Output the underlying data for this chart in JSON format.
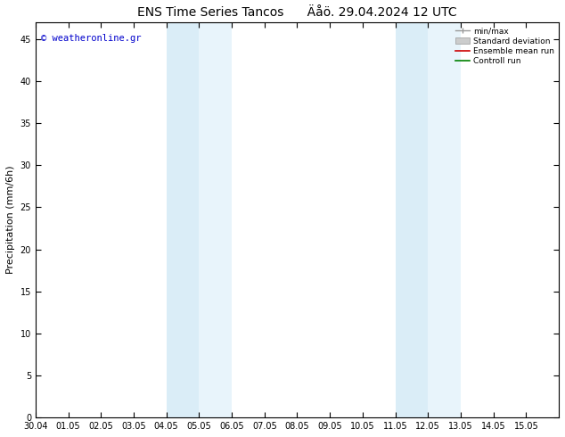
{
  "title": "ENS Time Series Tancos      Äåö. 29.04.2024 12 UTC",
  "ylabel": "Precipitation (mm/6h)",
  "xlabel": "",
  "xlim": [
    0,
    16
  ],
  "ylim": [
    0,
    47
  ],
  "yticks": [
    0,
    5,
    10,
    15,
    20,
    25,
    30,
    35,
    40,
    45
  ],
  "xtick_labels": [
    "30.04",
    "01.05",
    "02.05",
    "03.05",
    "04.05",
    "05.05",
    "06.05",
    "07.05",
    "08.05",
    "09.05",
    "10.05",
    "11.05",
    "12.05",
    "13.05",
    "14.05",
    "15.05"
  ],
  "xtick_positions": [
    0,
    1,
    2,
    3,
    4,
    5,
    6,
    7,
    8,
    9,
    10,
    11,
    12,
    13,
    14,
    15
  ],
  "shaded_bands": [
    {
      "xmin": 4.0,
      "xmax": 5.0,
      "color": "#daedf7"
    },
    {
      "xmin": 5.0,
      "xmax": 6.0,
      "color": "#e8f4fb"
    },
    {
      "xmin": 11.0,
      "xmax": 12.0,
      "color": "#daedf7"
    },
    {
      "xmin": 12.0,
      "xmax": 13.0,
      "color": "#e8f4fb"
    }
  ],
  "watermark": "© weatheronline.gr",
  "watermark_color": "#0000cc",
  "bg_color": "#ffffff",
  "plot_bg_color": "#ffffff",
  "legend_labels": [
    "min/max",
    "Standard deviation",
    "Ensemble mean run",
    "Controll run"
  ],
  "legend_colors": [
    "#999999",
    "#cccccc",
    "#cc0000",
    "#008000"
  ],
  "title_fontsize": 10,
  "tick_fontsize": 7,
  "ylabel_fontsize": 8
}
